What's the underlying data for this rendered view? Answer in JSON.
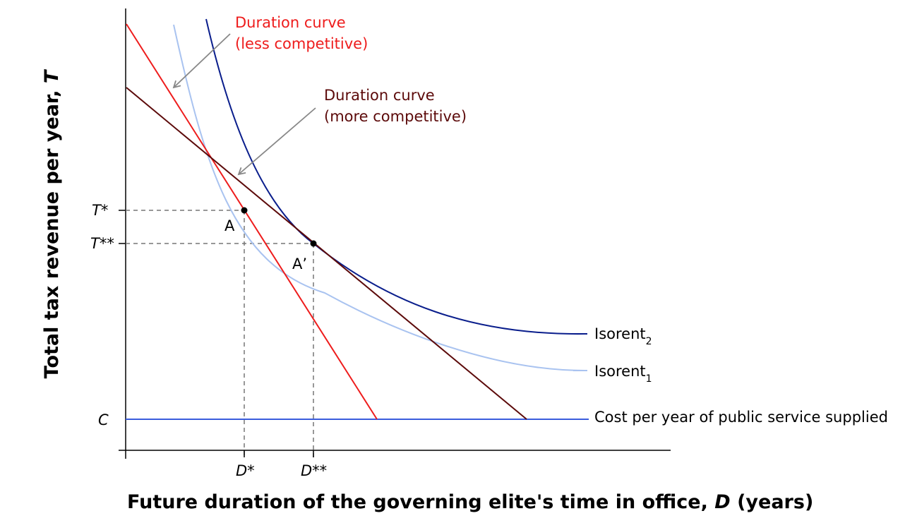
{
  "axes": {
    "y_title_text": "Total tax revenue per year, ",
    "y_title_var": "T",
    "x_title_text": "Future duration of the governing elite's time in office, ",
    "x_title_var": "D",
    "x_title_unit": " (years)"
  },
  "ticks": {
    "t_star": "T*",
    "t_star_star": "T**",
    "c": "C",
    "d_star": "D*",
    "d_star_star": "D**"
  },
  "points": {
    "a": "A",
    "a_prime": "A’"
  },
  "curves": {
    "duration_less": {
      "line1": "Duration curve",
      "line2": "(less competitive)",
      "color": "#ee1c1c"
    },
    "duration_more": {
      "line1": "Duration curve",
      "line2": "(more competitive)",
      "color": "#5c0a0a"
    },
    "isorent_2": {
      "base": "Isorent",
      "sub": "2",
      "color": "#0a1e8c"
    },
    "isorent_1": {
      "base": "Isorent",
      "sub": "1",
      "color": "#a9c3f0"
    },
    "cost": {
      "label": "Cost per year of public service supplied",
      "color": "#3a5cdc"
    }
  }
}
